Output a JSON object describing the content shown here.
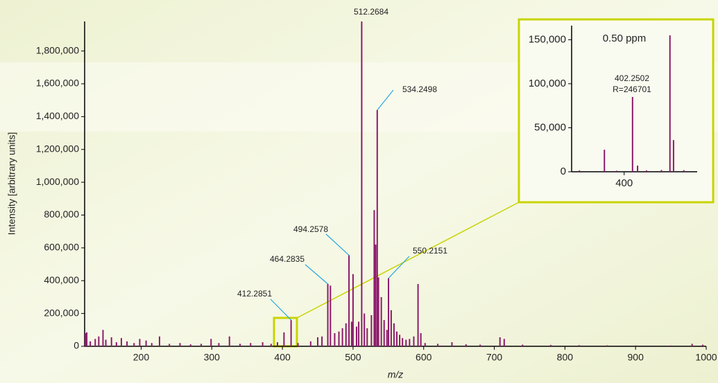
{
  "chart_data": [
    {
      "type": "spectrum",
      "x_label": "m/z",
      "y_label": "Intensity [arbitrary units]",
      "color": "#8b1a6b",
      "xlim": [
        120,
        1000
      ],
      "ylim": [
        0,
        1980000
      ],
      "xticks": [
        200,
        300,
        400,
        500,
        600,
        700,
        800,
        900,
        1000
      ],
      "yticks": [
        0,
        {
          "value": 200000,
          "label": "200,000"
        },
        {
          "value": 400000,
          "label": "400,000"
        },
        {
          "value": 600000,
          "label": "600,000"
        },
        {
          "value": 800000,
          "label": "800,000"
        },
        {
          "value": 1000000,
          "label": "1,000,000"
        },
        {
          "value": 1200000,
          "label": "1,200,000"
        },
        {
          "value": 1400000,
          "label": "1,400,000"
        },
        {
          "value": 1600000,
          "label": "1,600,000"
        },
        {
          "value": 1800000,
          "label": "1,800,000"
        }
      ],
      "x": [
        121,
        123,
        128,
        135,
        140,
        146,
        150,
        158,
        165,
        172,
        180,
        190,
        198,
        207,
        215,
        226,
        240,
        255,
        270,
        285,
        299,
        310,
        325,
        340,
        355,
        372,
        384,
        393,
        402.25,
        412.2851,
        422,
        440,
        450,
        456,
        464.2835,
        468,
        474,
        480,
        485,
        490,
        494.2578,
        498,
        500,
        505,
        508,
        512.2684,
        516,
        520,
        526,
        530,
        532,
        534.2498,
        536,
        540,
        544,
        548,
        550.2151,
        554,
        558,
        562,
        566,
        570,
        575,
        580,
        586,
        592,
        596,
        602,
        620,
        640,
        660,
        680,
        708,
        714,
        740,
        780,
        820,
        860,
        900,
        950,
        980,
        995
      ],
      "values": [
        80000,
        85000,
        30000,
        45000,
        60000,
        100000,
        40000,
        55000,
        25000,
        50000,
        30000,
        20000,
        45000,
        35000,
        20000,
        60000,
        15000,
        20000,
        12000,
        15000,
        45000,
        20000,
        60000,
        15000,
        20000,
        25000,
        15000,
        25000,
        85000,
        160000,
        20000,
        30000,
        55000,
        60000,
        380000,
        370000,
        80000,
        90000,
        110000,
        140000,
        555000,
        150000,
        440000,
        120000,
        150000,
        1980000,
        200000,
        110000,
        190000,
        830000,
        620000,
        1440000,
        420000,
        300000,
        160000,
        100000,
        415000,
        220000,
        140000,
        90000,
        70000,
        50000,
        40000,
        45000,
        60000,
        380000,
        80000,
        20000,
        15000,
        25000,
        12000,
        10000,
        55000,
        45000,
        10000,
        8000,
        7000,
        6000,
        5000,
        5000,
        15000,
        10000
      ],
      "annotations": [
        {
          "text": "512.2684",
          "x": 512.2684,
          "y": 1980000
        },
        {
          "text": "534.2498",
          "x": 534.2498,
          "y": 1440000
        },
        {
          "text": "494.2578",
          "x": 494.2578,
          "y": 555000
        },
        {
          "text": "464.2835",
          "x": 464.2835,
          "y": 380000
        },
        {
          "text": "550.2151",
          "x": 550.2151,
          "y": 415000
        },
        {
          "text": "412.2851",
          "x": 412.2851,
          "y": 160000
        }
      ]
    },
    {
      "type": "spectrum",
      "color": "#8b1a6b",
      "xlim": [
        385.9,
        419.6
      ],
      "ylim": [
        0,
        166000
      ],
      "xticks": [
        400
      ],
      "yticks": [
        0,
        {
          "value": 50000,
          "label": "50,000"
        },
        {
          "value": 100000,
          "label": "100,000"
        },
        {
          "value": 150000,
          "label": "150,000"
        }
      ],
      "x": [
        388,
        394.7,
        398,
        402.25,
        403.6,
        406,
        410,
        412.2851,
        413.25,
        416
      ],
      "values": [
        1500,
        25000,
        1200,
        85000,
        7000,
        1500,
        2000,
        155000,
        36000,
        1800
      ],
      "annotations": [
        {
          "text": "0.50 ppm"
        },
        {
          "text": "402.2502"
        },
        {
          "text": "R=246701"
        }
      ]
    }
  ]
}
